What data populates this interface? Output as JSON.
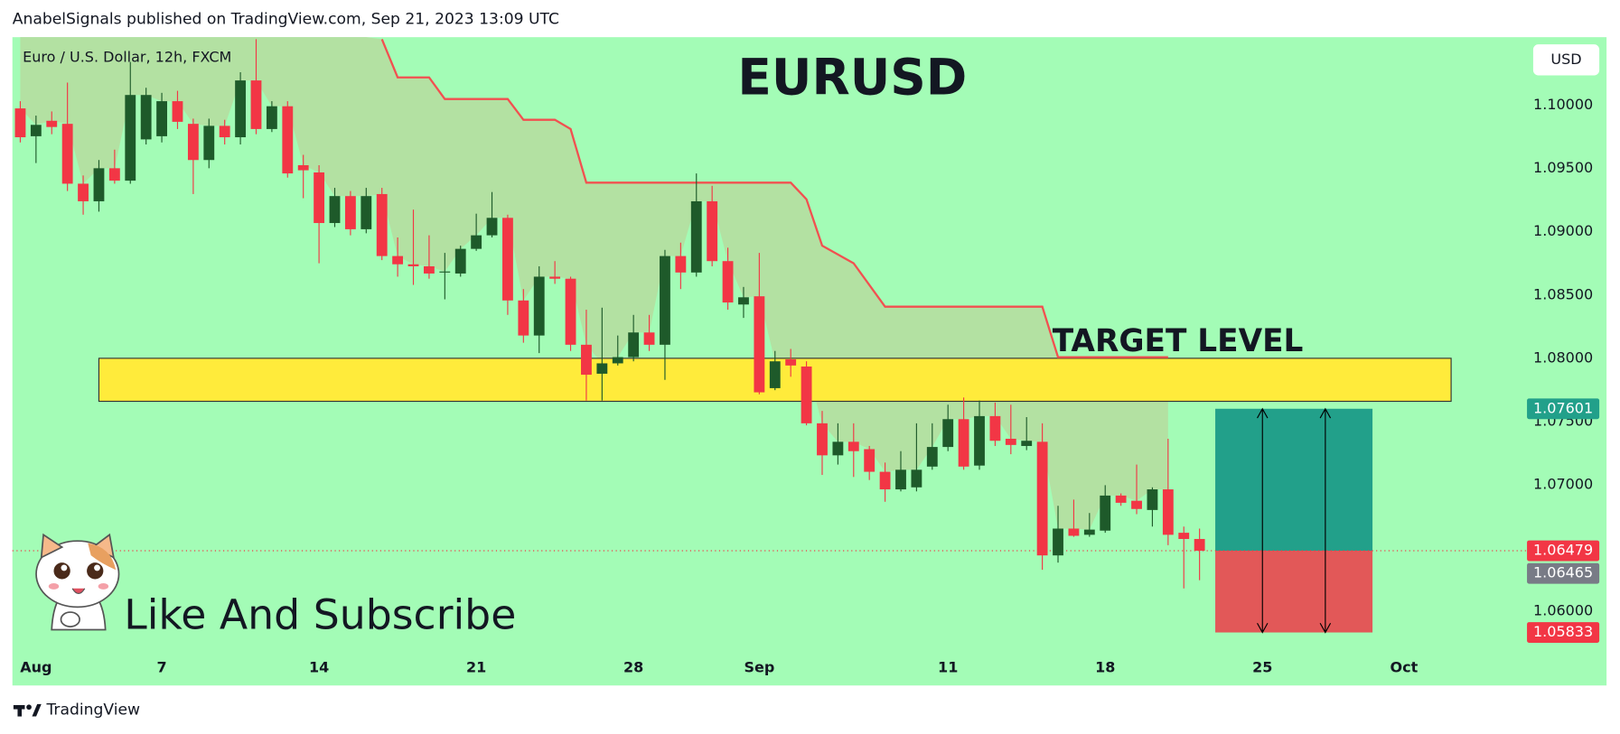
{
  "header": "AnabelSignals published on TradingView.com, Sep 21, 2023 13:09 UTC",
  "footer_brand": "TradingView",
  "annotation": "Like And Subscribe",
  "chart_data": {
    "type": "candlestick",
    "title": "EURUSD",
    "subtitle": "Euro / U.S. Dollar, 12h, FXCM",
    "currency": "USD",
    "up_color": "#1e5a2a",
    "down_color": "#f23645",
    "background": "#a3fcb6",
    "open": [
      1.09975,
      1.09755,
      1.09877,
      1.09853,
      1.0938,
      1.09241,
      1.09502,
      1.09404,
      1.0973,
      1.09755,
      1.10032,
      1.09853,
      1.09567,
      1.09837,
      1.09747,
      1.10196,
      1.09812,
      1.09992,
      1.09526,
      1.09469,
      1.09069,
      1.09282,
      1.0902,
      1.09298,
      1.08808,
      1.08743,
      1.08727,
      1.08678,
      1.0867,
      1.08865,
      1.08972,
      1.0911,
      1.08457,
      1.0818,
      1.08645,
      1.08629,
      1.08107,
      1.07878,
      1.0796,
      1.08009,
      1.08204,
      1.08107,
      1.08808,
      1.08678,
      1.09241,
      1.08768,
      1.08425,
      1.0849,
      1.07764,
      1.07992,
      1.07935,
      1.07486,
      1.07233,
      1.0734,
      1.07282,
      1.07103,
      1.06964,
      1.0698,
      1.07144,
      1.07299,
      1.07519,
      1.07152,
      1.07543,
      1.07364,
      1.07307,
      1.0734,
      1.06442,
      1.06654,
      1.06605,
      1.06638,
      1.06915,
      1.06874,
      1.06801,
      1.06964,
      1.06621,
      1.06572
    ],
    "high": [
      1.10032,
      1.09918,
      1.09951,
      1.10179,
      1.09445,
      1.09567,
      1.09649,
      1.10342,
      1.10138,
      1.10098,
      1.10114,
      1.09894,
      1.09894,
      1.09885,
      1.10261,
      1.10522,
      1.10032,
      1.10032,
      1.09608,
      1.09526,
      1.09347,
      1.09322,
      1.09347,
      1.09347,
      1.08955,
      1.09175,
      1.08972,
      1.08833,
      1.0889,
      1.09143,
      1.09314,
      1.09135,
      1.08547,
      1.08727,
      1.08768,
      1.08645,
      1.08384,
      1.084,
      1.0818,
      1.08343,
      1.08343,
      1.08857,
      1.08914,
      1.09461,
      1.09363,
      1.08874,
      1.08564,
      1.08833,
      1.08058,
      1.08074,
      1.07976,
      1.07584,
      1.07486,
      1.07486,
      1.07307,
      1.07176,
      1.07266,
      1.07486,
      1.07486,
      1.07633,
      1.0769,
      1.07666,
      1.0765,
      1.07633,
      1.07535,
      1.07486,
      1.06834,
      1.06883,
      1.06777,
      1.06997,
      1.06932,
      1.0716,
      1.0698,
      1.07364,
      1.0667,
      1.06654
    ],
    "low": [
      1.09706,
      1.09543,
      1.09771,
      1.09322,
      1.09135,
      1.09159,
      1.0938,
      1.0938,
      1.0969,
      1.09706,
      1.09812,
      1.09298,
      1.09502,
      1.0969,
      1.0969,
      1.09771,
      1.09788,
      1.09428,
      1.09265,
      1.08751,
      1.09037,
      1.08972,
      1.08988,
      1.08776,
      1.08645,
      1.0858,
      1.08629,
      1.08466,
      1.08645,
      1.08849,
      1.08955,
      1.08343,
      1.08123,
      1.08041,
      1.08588,
      1.08058,
      1.07666,
      1.07666,
      1.07943,
      1.07976,
      1.08058,
      1.07829,
      1.08547,
      1.08645,
      1.08727,
      1.08384,
      1.08319,
      1.07715,
      1.07748,
      1.07854,
      1.0747,
      1.07078,
      1.0716,
      1.07062,
      1.07038,
      1.06866,
      1.06948,
      1.06948,
      1.07119,
      1.07266,
      1.07119,
      1.07119,
      1.07307,
      1.07242,
      1.07274,
      1.06328,
      1.06385,
      1.06589,
      1.06589,
      1.06621,
      1.06834,
      1.06768,
      1.0667,
      1.06523,
      1.06181,
      1.06246
    ],
    "close": [
      1.09747,
      1.09845,
      1.09828,
      1.0938,
      1.09241,
      1.09502,
      1.09404,
      1.10081,
      1.10081,
      1.10032,
      1.09869,
      1.09567,
      1.09837,
      1.09747,
      1.10196,
      1.09812,
      1.09992,
      1.09461,
      1.09486,
      1.09069,
      1.09282,
      1.0902,
      1.09282,
      1.08808,
      1.08743,
      1.08727,
      1.0867,
      1.08686,
      1.08865,
      1.08972,
      1.0911,
      1.08457,
      1.0818,
      1.08645,
      1.08629,
      1.08107,
      1.0787,
      1.0796,
      1.08009,
      1.08204,
      1.08107,
      1.08808,
      1.08678,
      1.09241,
      1.08768,
      1.08441,
      1.08482,
      1.07731,
      1.07976,
      1.07943,
      1.07486,
      1.07233,
      1.0734,
      1.07266,
      1.07103,
      1.06964,
      1.07119,
      1.07119,
      1.07299,
      1.07519,
      1.07144,
      1.07543,
      1.07348,
      1.07315,
      1.07348,
      1.06442,
      1.06654,
      1.06597,
      1.06646,
      1.06915,
      1.06858,
      1.06809,
      1.06964,
      1.06605,
      1.06572,
      1.06479
    ],
    "xlim": [
      -0.5,
      95.3
    ],
    "xticks": [
      {
        "value": 1,
        "label": "Aug"
      },
      {
        "value": 9,
        "label": "7"
      },
      {
        "value": 19,
        "label": "14"
      },
      {
        "value": 29,
        "label": "21"
      },
      {
        "value": 39,
        "label": "28"
      },
      {
        "value": 47,
        "label": "Sep"
      },
      {
        "value": 59,
        "label": "11"
      },
      {
        "value": 69,
        "label": "18"
      },
      {
        "value": 79,
        "label": "25"
      },
      {
        "value": 88,
        "label": "Oct"
      }
    ],
    "ylim": [
      1.05414,
      1.10538
    ],
    "yticks": [
      {
        "value": 1.06,
        "label": "1.06000"
      },
      {
        "value": 1.065,
        "label": "1.06500"
      },
      {
        "value": 1.07,
        "label": "1.07000"
      },
      {
        "value": 1.075,
        "label": "1.07500"
      },
      {
        "value": 1.08,
        "label": "1.08000"
      },
      {
        "value": 1.085,
        "label": "1.08500"
      },
      {
        "value": 1.09,
        "label": "1.09000"
      },
      {
        "value": 1.095,
        "label": "1.09500"
      },
      {
        "value": 1.1,
        "label": "1.10000"
      }
    ],
    "grid": false,
    "supertrend": {
      "color": "#f25050",
      "x": [
        23,
        24,
        26,
        27,
        31,
        32,
        34,
        35,
        36,
        49,
        50,
        51,
        53,
        55,
        65,
        66,
        73
      ],
      "values": [
        1.10522,
        1.1022,
        1.1022,
        1.10049,
        1.10049,
        1.09885,
        1.09885,
        1.09812,
        1.09388,
        1.09388,
        1.09257,
        1.0889,
        1.08751,
        1.08408,
        1.08408,
        1.08009,
        1.08009
      ]
    },
    "zone": {
      "label": "TARGET LEVEL",
      "color": "#ffeb3b",
      "x": [
        5,
        91
      ],
      "low": 1.0766,
      "high": 1.08
    },
    "position": {
      "x": [
        76,
        86
      ],
      "entry": 1.06479,
      "target": 1.07601,
      "stop": 1.05833,
      "profit_color": "#22a08a",
      "loss_color": "#e25858"
    },
    "price_labels": [
      {
        "value": 1.07601,
        "color": "#22a08a"
      },
      {
        "value": 1.06479,
        "color": "#f23645"
      },
      {
        "value": 1.06465,
        "color": "#787b86"
      },
      {
        "value": 1.05833,
        "color": "#f23645"
      }
    ]
  }
}
